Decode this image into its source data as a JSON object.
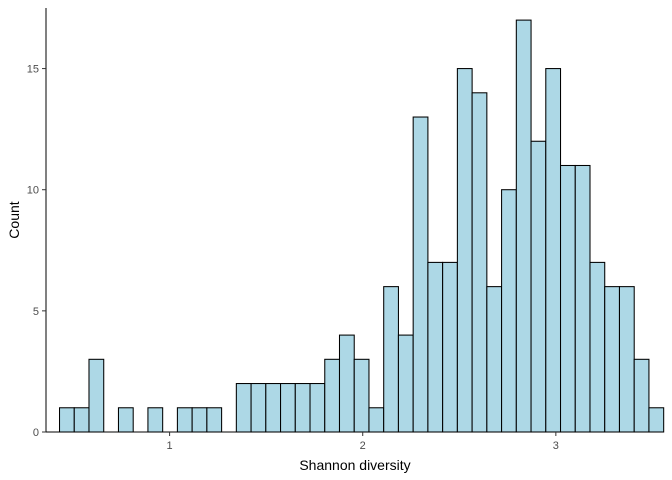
{
  "chart_data": {
    "type": "bar",
    "subtype": "histogram",
    "xlabel": "Shannon diversity",
    "ylabel": "Count",
    "xlim": [
      0.36,
      3.56
    ],
    "ylim": [
      0,
      17.5
    ],
    "x_ticks": [
      1,
      2,
      3
    ],
    "y_ticks": [
      0,
      5,
      10,
      15
    ],
    "bin_start": 0.43,
    "bin_width": 0.0763,
    "values": [
      1,
      1,
      3,
      0,
      1,
      0,
      1,
      0,
      1,
      1,
      1,
      0,
      2,
      2,
      2,
      2,
      2,
      2,
      3,
      4,
      3,
      1,
      6,
      4,
      13,
      7,
      7,
      15,
      14,
      6,
      10,
      17,
      12,
      15,
      11,
      11,
      7,
      6,
      6,
      3,
      1
    ],
    "bar_fill": "#add8e6",
    "bar_stroke": "#000000",
    "grid": false,
    "legend": "none"
  }
}
